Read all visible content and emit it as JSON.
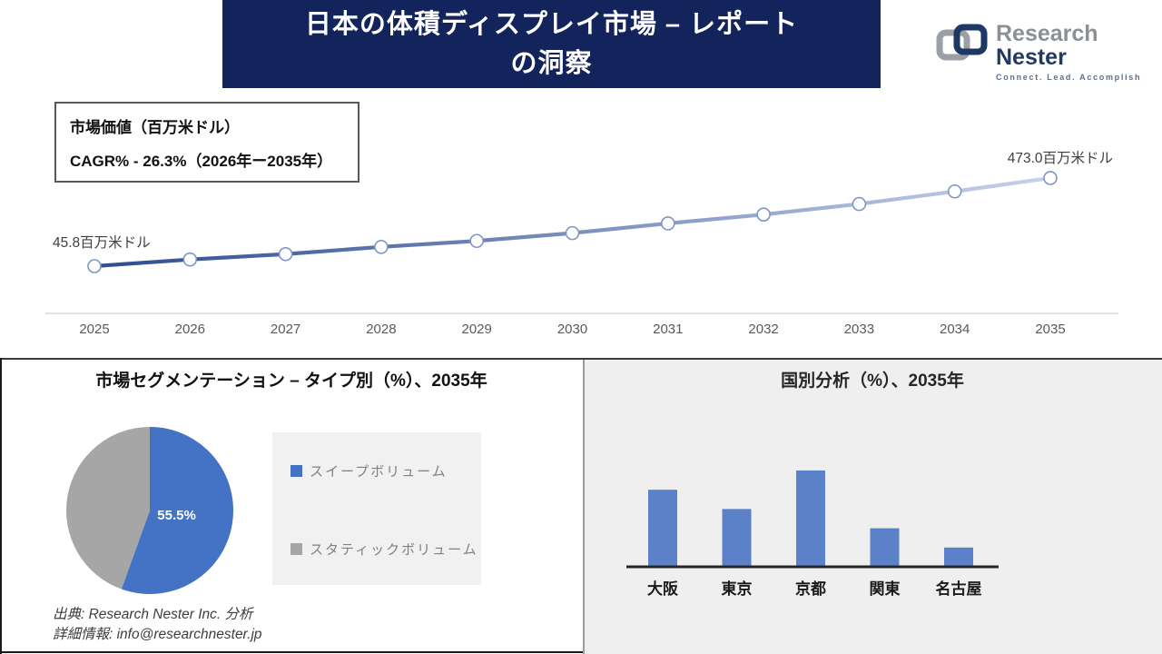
{
  "header": {
    "title_line1": "日本の体積ディスプレイ市場 – レポート",
    "title_line2": "の洞察"
  },
  "logo": {
    "brand_first": "Research",
    "brand_second": "Nester",
    "tagline": "Connect. Lead. Accomplish",
    "icon_gray": "#9aa0a6",
    "icon_navy": "#1d3766"
  },
  "info_box": {
    "line1": "市場価値（百万米ドル）",
    "line2": "CAGR% - 26.3%（2026年ー2035年）"
  },
  "chart_data": [
    {
      "type": "line",
      "title": "市場価値（百万米ドル）",
      "x": [
        2025,
        2026,
        2027,
        2028,
        2029,
        2030,
        2031,
        2032,
        2033,
        2034,
        2035
      ],
      "values": [
        45.8,
        78,
        104,
        139,
        168,
        206,
        253,
        296,
        347,
        408,
        473
      ],
      "first_label": "45.8百万米ドル",
      "last_label": "473.0百万米ドル",
      "ylim": [
        0,
        520
      ],
      "grid": "off",
      "line_gradient_start": "#2e4c8f",
      "line_gradient_end": "#c7d2ea",
      "marker_fill": "#ffffff",
      "marker_stroke": "#7e95c5",
      "axis_color": "#d9d9d9",
      "tick_color": "#595959",
      "label_color": "#404040"
    },
    {
      "type": "pie",
      "title": "市場セグメンテーション – タイプ別（%）、2035年",
      "slices": [
        {
          "label": "スイープボリューム",
          "value": 55.5,
          "color": "#4472C4",
          "data_label": "55.5%"
        },
        {
          "label": "スタティックボリューム",
          "value": 44.5,
          "color": "#A6A6A6",
          "data_label": ""
        }
      ],
      "data_label_color": "#ffffff",
      "legend_position": "right"
    },
    {
      "type": "bar",
      "title": "国別分析（%）、2035年",
      "categories": [
        "大阪",
        "東京",
        "京都",
        "関東",
        "名古屋"
      ],
      "values": [
        28,
        21,
        35,
        14,
        7
      ],
      "ylim": [
        0,
        38
      ],
      "grid": "off",
      "bar_color": "#5b82c8",
      "axis_color": "#262626",
      "category_color": "#1a1a1a",
      "panel_bg": "#efefef"
    }
  ],
  "footer": {
    "source": "出典: Research Nester Inc. 分析",
    "contact": "詳細情報: info@researchnester.jp"
  }
}
